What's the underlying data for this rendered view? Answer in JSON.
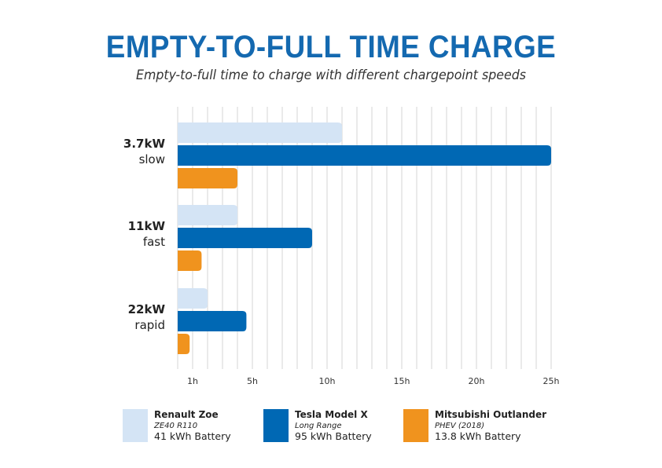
{
  "title": "EMPTY-TO-FULL TIME CHARGE",
  "subtitle": "Empty-to-full time to charge with different chargepoint speeds",
  "colors": {
    "title": "#1469b0",
    "renault": "#d4e4f5",
    "tesla": "#0068b4",
    "mitsubishi": "#f0931e",
    "grid": "#d6d6d6"
  },
  "chart_data": {
    "type": "bar",
    "orientation": "horizontal",
    "title": "EMPTY-TO-FULL TIME CHARGE",
    "subtitle": "Empty-to-full time to charge with different chargepoint speeds",
    "xlabel": "",
    "ylabel": "",
    "xlim": [
      0,
      25
    ],
    "grid": "vertical lines every 1h",
    "x_ticks": [
      {
        "value": 1,
        "label": "1h"
      },
      {
        "value": 5,
        "label": "5h"
      },
      {
        "value": 10,
        "label": "10h"
      },
      {
        "value": 15,
        "label": "15h"
      },
      {
        "value": 20,
        "label": "20h"
      },
      {
        "value": 25,
        "label": "25h"
      }
    ],
    "categories": [
      {
        "power": "3.7kW",
        "speed": "slow"
      },
      {
        "power": "11kW",
        "speed": "fast"
      },
      {
        "power": "22kW",
        "speed": "rapid"
      }
    ],
    "series": [
      {
        "name": "Renault Zoe",
        "variant": "ZE40 R110",
        "battery": "41 kWh Battery",
        "color": "#d4e4f5",
        "values": [
          11,
          4,
          2
        ]
      },
      {
        "name": "Tesla Model X",
        "variant": "Long Range",
        "battery": "95 kWh Battery",
        "color": "#0068b4",
        "values": [
          25,
          9,
          4.6
        ]
      },
      {
        "name": "Mitsubishi Outlander",
        "variant": "PHEV (2018)",
        "battery": "13.8 kWh Battery",
        "color": "#f0931e",
        "values": [
          4,
          1.6,
          0.8
        ]
      }
    ],
    "legend": "bottom"
  }
}
